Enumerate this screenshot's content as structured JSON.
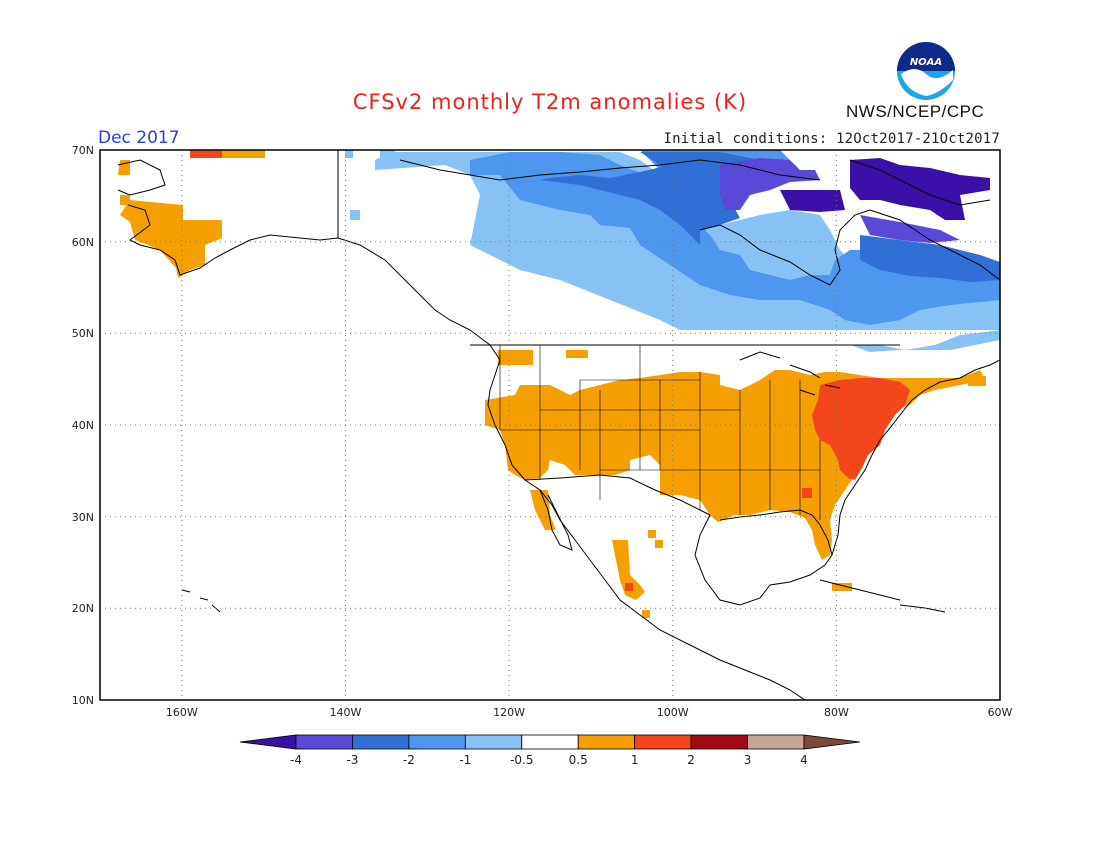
{
  "header": {
    "title": "CFSv2 monthly T2m anomalies (K)",
    "month": "Dec 2017",
    "initial_conditions": "Initial conditions: 12Oct2017-21Oct2017",
    "agency": "NWS/NCEP/CPC",
    "logo_text": "NOAA"
  },
  "map": {
    "lat_range": [
      10,
      70
    ],
    "lon_range": [
      -170,
      -60
    ],
    "lat_labels": [
      "70N",
      "60N",
      "50N",
      "40N",
      "30N",
      "20N",
      "10N"
    ],
    "lon_labels": [
      "160W",
      "140W",
      "120W",
      "100W",
      "80W",
      "60W"
    ],
    "grid": "dotted"
  },
  "legend": {
    "labels": [
      "-4",
      "-3",
      "-2",
      "-1",
      "-0.5",
      "0.5",
      "1",
      "2",
      "3",
      "4"
    ],
    "colors": [
      "#3a10a8",
      "#5a49d8",
      "#2f6fd6",
      "#4d97ee",
      "#87c2f6",
      "#ffffff",
      "#f5a000",
      "#f5461b",
      "#a10a12",
      "#c9a595",
      "#7a4a3a"
    ]
  }
}
